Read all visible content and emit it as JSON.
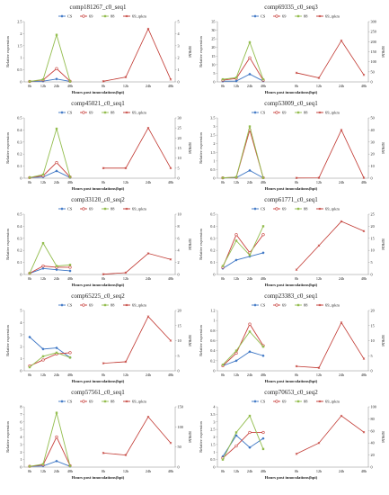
{
  "legend_labels": [
    "CS",
    "69",
    "88",
    "69_rpkm"
  ],
  "colors": {
    "CS": "#3a74c4",
    "69": "#c8403c",
    "88": "#93bd4e",
    "69_rpkm": "#c0362f"
  },
  "left_hours": [
    "0h",
    "12h",
    "24h",
    "48h"
  ],
  "right_hours": [
    "0h",
    "12h",
    "24h",
    "48h"
  ],
  "ylabel_left": "Relative expression",
  "ylabel_right": "RPKM",
  "xlabel": "Hours post innoculations(hpi)",
  "chart_data": [
    {
      "type": "line",
      "title": "comp181267_c0_seq1",
      "ylim": [
        0,
        2.5
      ],
      "yticks": [
        0,
        0.5,
        1,
        1.5,
        2,
        2.5
      ],
      "y2lim": [
        0,
        5
      ],
      "y2ticks": [
        0,
        1,
        2,
        3,
        4,
        5
      ],
      "series": [
        {
          "name": "CS",
          "values": [
            0.02,
            0.03,
            0.12,
            0.02
          ]
        },
        {
          "name": "69",
          "values": [
            0.02,
            0.08,
            0.55,
            0.03
          ]
        },
        {
          "name": "88",
          "values": [
            0.02,
            0.1,
            1.95,
            0.02
          ]
        },
        {
          "name": "69_rpkm",
          "values": [
            0.05,
            0.4,
            4.4,
            0.2
          ]
        }
      ]
    },
    {
      "type": "line",
      "title": "comp69335_c0_seq3",
      "ylim": [
        0,
        35
      ],
      "yticks": [
        0,
        5,
        10,
        15,
        20,
        25,
        30,
        35
      ],
      "y2lim": [
        0,
        300
      ],
      "y2ticks": [
        0,
        50,
        100,
        150,
        200,
        250,
        300
      ],
      "series": [
        {
          "name": "CS",
          "values": [
            0.4,
            0.5,
            4.5,
            0.5
          ]
        },
        {
          "name": "69",
          "values": [
            1,
            2,
            14,
            1
          ]
        },
        {
          "name": "88",
          "values": [
            1.5,
            2.5,
            23,
            1.5
          ]
        },
        {
          "name": "69_rpkm",
          "values": [
            45,
            20,
            205,
            35
          ]
        }
      ]
    },
    {
      "type": "line",
      "title": "comp45021_c0_seq1",
      "ylim": [
        0,
        0.5
      ],
      "yticks": [
        0,
        0.1,
        0.2,
        0.3,
        0.4,
        0.5
      ],
      "y2lim": [
        0,
        30
      ],
      "y2ticks": [
        0,
        5,
        10,
        15,
        20,
        25,
        30
      ],
      "series": [
        {
          "name": "CS",
          "values": [
            0.005,
            0.01,
            0.06,
            0.005
          ]
        },
        {
          "name": "69",
          "values": [
            0.005,
            0.02,
            0.13,
            0.01
          ]
        },
        {
          "name": "88",
          "values": [
            0.005,
            0.03,
            0.41,
            0.01
          ]
        },
        {
          "name": "69_rpkm",
          "values": [
            5,
            5,
            25,
            5
          ]
        }
      ]
    },
    {
      "type": "line",
      "title": "comp53009_c0_seq1",
      "ylim": [
        0,
        3.5
      ],
      "yticks": [
        0,
        0.5,
        1,
        1.5,
        2,
        2.5,
        3,
        3.5
      ],
      "y2lim": [
        0,
        50
      ],
      "y2ticks": [
        0,
        10,
        20,
        30,
        40,
        50
      ],
      "series": [
        {
          "name": "CS",
          "values": [
            0.02,
            0.03,
            0.45,
            0.02
          ]
        },
        {
          "name": "69",
          "values": [
            0.02,
            0.05,
            2.8,
            0.03
          ]
        },
        {
          "name": "88",
          "values": [
            0.02,
            0.06,
            3.0,
            0.02
          ]
        },
        {
          "name": "69_rpkm",
          "values": [
            0.2,
            0.3,
            40,
            0.3
          ]
        }
      ]
    },
    {
      "type": "line",
      "title": "comp33120_c0_seq2",
      "ylim": [
        0,
        0.5
      ],
      "yticks": [
        0,
        0.1,
        0.2,
        0.3,
        0.4,
        0.5
      ],
      "y2lim": [
        0,
        10
      ],
      "y2ticks": [
        0,
        2,
        4,
        6,
        8,
        10
      ],
      "series": [
        {
          "name": "CS",
          "values": [
            0.01,
            0.05,
            0.04,
            0.03
          ]
        },
        {
          "name": "69",
          "values": [
            0.01,
            0.07,
            0.06,
            0.06
          ]
        },
        {
          "name": "88",
          "values": [
            0.01,
            0.26,
            0.07,
            0.08
          ]
        },
        {
          "name": "69_rpkm",
          "values": [
            0.05,
            0.3,
            3.5,
            2.5
          ]
        }
      ]
    },
    {
      "type": "line",
      "title": "comp61771_c0_seq1",
      "ylim": [
        0,
        0.5
      ],
      "yticks": [
        0,
        0.1,
        0.2,
        0.3,
        0.4,
        0.5
      ],
      "y2lim": [
        0,
        25
      ],
      "y2ticks": [
        0,
        5,
        10,
        15,
        20,
        25
      ],
      "series": [
        {
          "name": "CS",
          "values": [
            0.05,
            0.12,
            0.15,
            0.18
          ]
        },
        {
          "name": "69",
          "values": [
            0.06,
            0.33,
            0.18,
            0.33
          ]
        },
        {
          "name": "88",
          "values": [
            0.07,
            0.28,
            0.16,
            0.4
          ]
        },
        {
          "name": "69_rpkm",
          "values": [
            2,
            12,
            22,
            18
          ]
        }
      ]
    },
    {
      "type": "line",
      "title": "comp65225_c0_seq2",
      "ylim": [
        0,
        5
      ],
      "yticks": [
        0,
        1,
        2,
        3,
        4,
        5
      ],
      "y2lim": [
        0,
        20
      ],
      "y2ticks": [
        0,
        5,
        10,
        15,
        20
      ],
      "series": [
        {
          "name": "CS",
          "values": [
            2.8,
            1.8,
            1.9,
            1.1
          ]
        },
        {
          "name": "69",
          "values": [
            0.4,
            0.9,
            1.4,
            1.5
          ]
        },
        {
          "name": "88",
          "values": [
            0.3,
            1.2,
            1.5,
            1.1
          ]
        },
        {
          "name": "69_rpkm",
          "values": [
            2.5,
            3,
            18,
            10
          ]
        }
      ]
    },
    {
      "type": "line",
      "title": "comp23383_c0_seq1",
      "ylim": [
        0,
        1.2
      ],
      "yticks": [
        0,
        0.2,
        0.4,
        0.6,
        0.8,
        1.0,
        1.2
      ],
      "y2lim": [
        0,
        20
      ],
      "y2ticks": [
        0,
        5,
        10,
        15,
        20
      ],
      "series": [
        {
          "name": "CS",
          "values": [
            0.1,
            0.2,
            0.38,
            0.3
          ]
        },
        {
          "name": "69",
          "values": [
            0.1,
            0.35,
            0.93,
            0.5
          ]
        },
        {
          "name": "88",
          "values": [
            0.12,
            0.4,
            0.78,
            0.48
          ]
        },
        {
          "name": "69_rpkm",
          "values": [
            1.5,
            1,
            16,
            4
          ]
        }
      ]
    },
    {
      "type": "line",
      "title": "comp57561_c0_seq1",
      "ylim": [
        0,
        8
      ],
      "yticks": [
        0,
        1,
        2,
        3,
        4,
        5,
        6,
        7,
        8
      ],
      "y2lim": [
        0,
        150
      ],
      "y2ticks": [
        0,
        50,
        100,
        150
      ],
      "series": [
        {
          "name": "CS",
          "values": [
            0.1,
            0.15,
            0.8,
            0.1
          ]
        },
        {
          "name": "69",
          "values": [
            0.1,
            0.3,
            4.0,
            0.2
          ]
        },
        {
          "name": "88",
          "values": [
            0.1,
            0.4,
            7.2,
            0.15
          ]
        },
        {
          "name": "69_rpkm",
          "values": [
            35,
            30,
            125,
            60
          ]
        }
      ]
    },
    {
      "type": "line",
      "title": "comp70653_c0_seq2",
      "ylim": [
        0,
        4
      ],
      "yticks": [
        0,
        0.5,
        1,
        1.5,
        2,
        2.5,
        3,
        3.5,
        4
      ],
      "y2lim": [
        0,
        100
      ],
      "y2ticks": [
        0,
        20,
        40,
        60,
        80,
        100
      ],
      "series": [
        {
          "name": "CS",
          "values": [
            0.7,
            2.1,
            1.3,
            1.9
          ]
        },
        {
          "name": "69",
          "values": [
            0.6,
            1.4,
            2.3,
            2.3
          ]
        },
        {
          "name": "88",
          "values": [
            0.5,
            2.3,
            3.4,
            1.2
          ]
        },
        {
          "name": "69_rpkm",
          "values": [
            22,
            40,
            85,
            58
          ]
        }
      ]
    }
  ]
}
